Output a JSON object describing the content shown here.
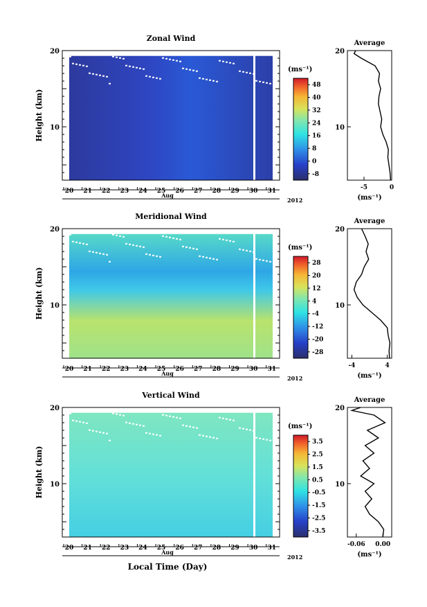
{
  "figure": {
    "common_xlabel": "Local Time (Day)",
    "month_label": "Aug",
    "year_label": "2012",
    "day_ticks": [
      "20",
      "21",
      "22",
      "23",
      "24",
      "25",
      "26",
      "27",
      "28",
      "29",
      "30",
      "31"
    ]
  },
  "chart_data": [
    {
      "type": "heatmap",
      "title": "Zonal Wind",
      "ylabel": "Height (km)",
      "ylim": [
        3,
        20
      ],
      "y_ticks": [
        10,
        20
      ],
      "colorbar": {
        "unit": "(ms⁻¹)",
        "range": [
          -12,
          52
        ],
        "ticks": [
          48,
          40,
          32,
          24,
          16,
          8,
          0,
          -8
        ],
        "tick_labels": [
          "48",
          "40",
          "32",
          "24",
          "16",
          "8",
          "0",
          "-8"
        ]
      },
      "profile": {
        "title": "Average",
        "xlabel": "(ms⁻¹)",
        "xlim": [
          -8,
          0
        ],
        "x_ticks": [
          -5,
          0
        ],
        "x_tick_labels": [
          "-5",
          "0"
        ],
        "y_ticks": [
          10,
          20
        ],
        "points": [
          [
            -0.2,
            3
          ],
          [
            -0.3,
            4
          ],
          [
            -0.5,
            5
          ],
          [
            -0.7,
            6
          ],
          [
            -0.6,
            7
          ],
          [
            -1.0,
            8
          ],
          [
            -1.6,
            9
          ],
          [
            -2.0,
            10
          ],
          [
            -1.8,
            11
          ],
          [
            -2.1,
            12
          ],
          [
            -2.4,
            13
          ],
          [
            -2.3,
            14
          ],
          [
            -2.0,
            15
          ],
          [
            -2.4,
            16
          ],
          [
            -2.2,
            17
          ],
          [
            -3.0,
            18
          ],
          [
            -5.5,
            19
          ],
          [
            -6.8,
            19.6
          ],
          [
            -6.5,
            20
          ]
        ]
      }
    },
    {
      "type": "heatmap",
      "title": "Meridional Wind",
      "ylabel": "Height (km)",
      "ylim": [
        3,
        20
      ],
      "y_ticks": [
        10,
        20
      ],
      "colorbar": {
        "unit": "(ms⁻¹)",
        "range": [
          -32,
          32
        ],
        "ticks": [
          28,
          20,
          12,
          4,
          -4,
          -12,
          -20,
          -28
        ],
        "tick_labels": [
          "28",
          "20",
          "12",
          "4",
          "-4",
          "-12",
          "-20",
          "-28"
        ]
      },
      "profile": {
        "title": "Average",
        "xlabel": "(ms⁻¹)",
        "xlim": [
          -5,
          5
        ],
        "x_ticks": [
          -4,
          4
        ],
        "x_tick_labels": [
          "-4",
          "4"
        ],
        "y_ticks": [
          10,
          20
        ],
        "points": [
          [
            4.5,
            3
          ],
          [
            4.4,
            4
          ],
          [
            4.6,
            5
          ],
          [
            4.2,
            6
          ],
          [
            4.0,
            7
          ],
          [
            2.5,
            8
          ],
          [
            0.5,
            9
          ],
          [
            -1.5,
            10
          ],
          [
            -2.8,
            11
          ],
          [
            -3.5,
            12
          ],
          [
            -3.0,
            13
          ],
          [
            -1.8,
            14
          ],
          [
            -1.2,
            15
          ],
          [
            -0.2,
            16
          ],
          [
            -0.8,
            17
          ],
          [
            -0.3,
            18
          ],
          [
            -1.0,
            19
          ],
          [
            -1.8,
            20
          ]
        ]
      }
    },
    {
      "type": "heatmap",
      "title": "Vertical Wind",
      "ylabel": "Height (km)",
      "ylim": [
        3,
        20
      ],
      "y_ticks": [
        10,
        20
      ],
      "colorbar": {
        "unit": "(ms⁻¹)",
        "range": [
          -4,
          4
        ],
        "ticks": [
          3.5,
          2.5,
          1.5,
          0.5,
          -0.5,
          -1.5,
          -2.5,
          -3.5
        ],
        "tick_labels": [
          "3.5",
          "2.5",
          "1.5",
          "0.5",
          "-0.5",
          "-1.5",
          "-2.5",
          "-3.5"
        ]
      },
      "profile": {
        "title": "Average",
        "xlabel": "(ms⁻¹)",
        "xlim": [
          -0.08,
          0.02
        ],
        "x_ticks": [
          -0.06,
          0.0
        ],
        "x_tick_labels": [
          "-0.06",
          "0.00"
        ],
        "y_ticks": [
          10,
          20
        ],
        "points": [
          [
            0.0,
            3
          ],
          [
            0.002,
            4
          ],
          [
            -0.01,
            5
          ],
          [
            -0.03,
            6
          ],
          [
            -0.04,
            7
          ],
          [
            -0.025,
            8
          ],
          [
            -0.04,
            9
          ],
          [
            -0.02,
            10
          ],
          [
            -0.05,
            11
          ],
          [
            -0.03,
            12
          ],
          [
            -0.045,
            13
          ],
          [
            -0.02,
            14
          ],
          [
            -0.04,
            15
          ],
          [
            -0.01,
            16
          ],
          [
            -0.035,
            17
          ],
          [
            0.005,
            18
          ],
          [
            -0.02,
            19
          ],
          [
            -0.07,
            19.6
          ],
          [
            -0.05,
            20
          ]
        ]
      }
    }
  ]
}
